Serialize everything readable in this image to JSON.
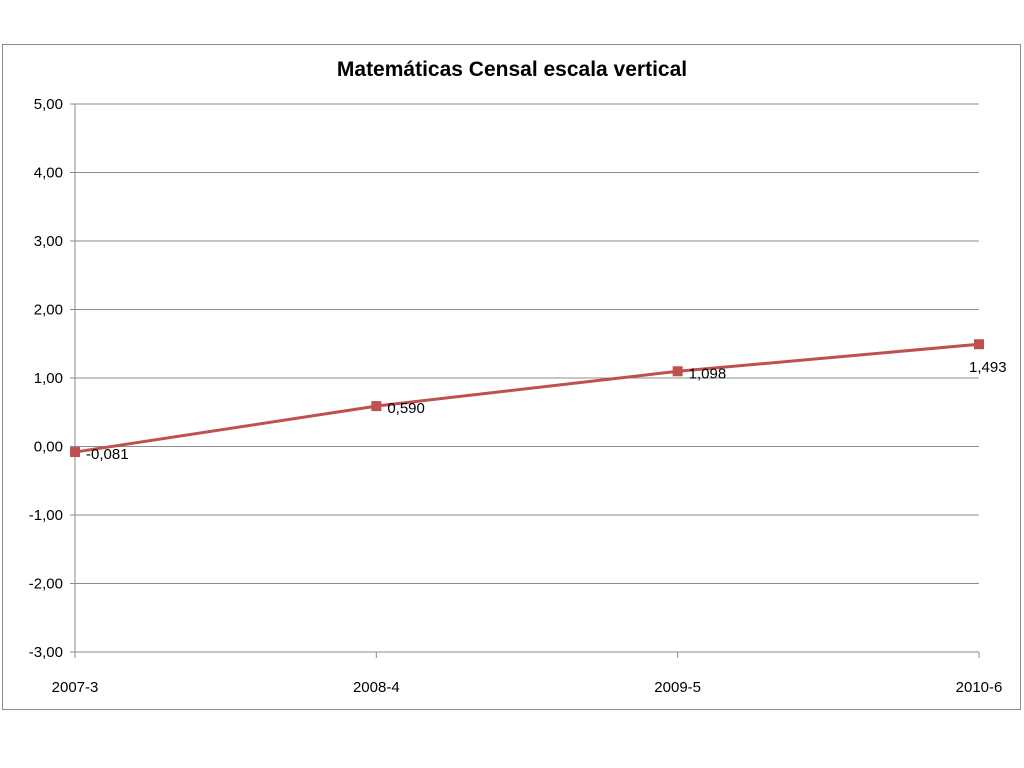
{
  "chart_data": {
    "type": "line",
    "title": "Matemáticas Censal escala vertical",
    "xlabel": "",
    "ylabel": "",
    "categories": [
      "2007-3",
      "2008-4",
      "2009-5",
      "2010-6"
    ],
    "series": [
      {
        "values": [
          -0.081,
          0.59,
          1.098,
          1.493
        ],
        "data_labels": [
          "-0,081",
          "0,590",
          "1,098",
          "1,493"
        ],
        "color": "#c0504d",
        "marker": "square"
      }
    ],
    "ylim": [
      -3,
      5
    ],
    "y_ticks": [
      5,
      4,
      3,
      2,
      1,
      0,
      -1,
      -2,
      -3
    ],
    "y_tick_labels": [
      "5,00",
      "4,00",
      "3,00",
      "2,00",
      "1,00",
      "0,00",
      "-1,00",
      "-2,00",
      "-3,00"
    ],
    "grid": true,
    "legend": "none"
  }
}
